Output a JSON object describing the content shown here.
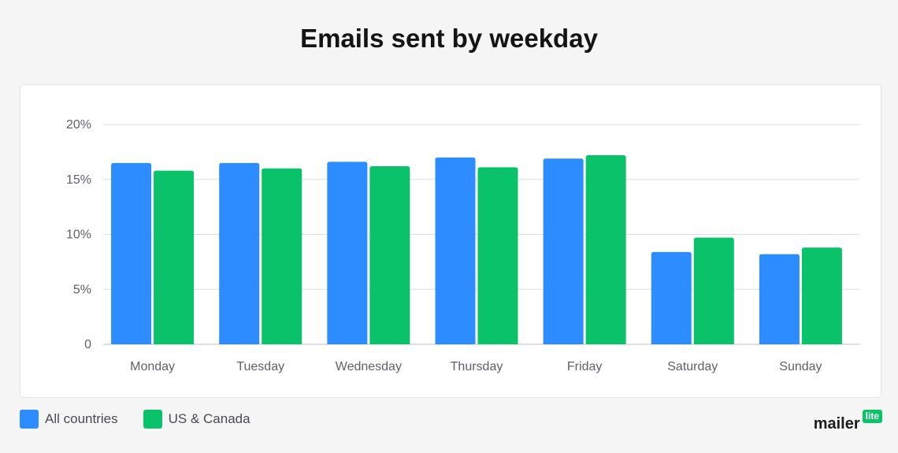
{
  "chart_data": {
    "type": "bar",
    "title": "Emails sent by weekday",
    "xlabel": "",
    "ylabel": "",
    "categories": [
      "Monday",
      "Tuesday",
      "Wednesday",
      "Thursday",
      "Friday",
      "Saturday",
      "Sunday"
    ],
    "series": [
      {
        "name": "All countries",
        "color": "#2d8cff",
        "values": [
          16.5,
          16.5,
          16.6,
          17.0,
          16.9,
          8.4,
          8.2
        ]
      },
      {
        "name": "US & Canada",
        "color": "#09c269",
        "values": [
          15.8,
          16.0,
          16.2,
          16.1,
          17.2,
          9.7,
          8.8
        ]
      }
    ],
    "ylim": [
      0,
      20
    ],
    "yticks": [
      0,
      5,
      10,
      15,
      20
    ],
    "ytick_labels": [
      "0",
      "5%",
      "10%",
      "15%",
      "20%"
    ],
    "grid": true,
    "legend_position": "bottom-left"
  },
  "brand": {
    "name": "mailer",
    "badge": "lite"
  }
}
